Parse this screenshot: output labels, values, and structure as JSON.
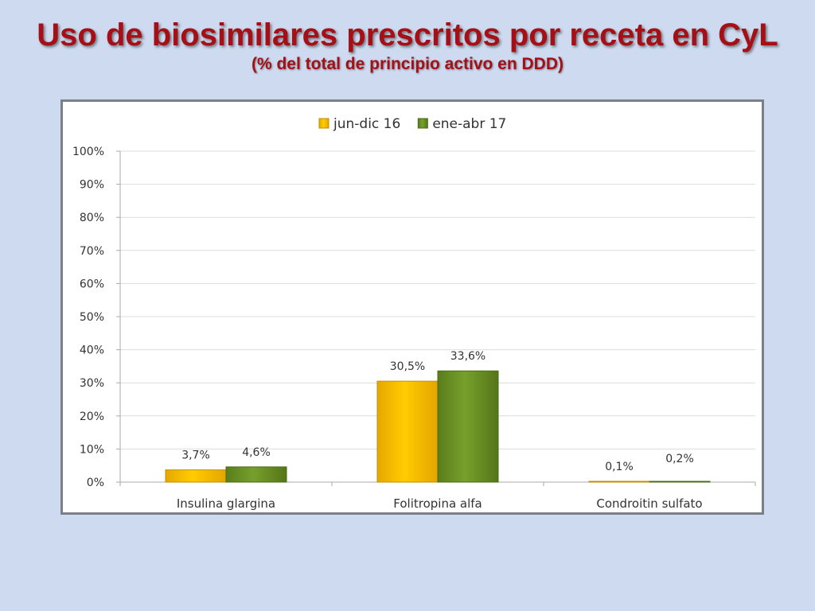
{
  "title": "Uso de biosimilares prescritos por receta en CyL",
  "subtitle": "(% del total de principio activo en DDD)",
  "colors": {
    "title": "#a50f15",
    "background": "#cddaef",
    "series_1": "#ffc000",
    "series_2": "#6b8e23"
  },
  "chart_data": {
    "type": "bar",
    "categories": [
      "Insulina glargina",
      "Folitropina alfa",
      "Condroitin sulfato"
    ],
    "series": [
      {
        "name": "jun-dic 16",
        "values": [
          3.7,
          30.5,
          0.1
        ],
        "labels": [
          "3,7%",
          "30,5%",
          "0,1%"
        ]
      },
      {
        "name": "ene-abr 17",
        "values": [
          4.6,
          33.6,
          0.2
        ],
        "labels": [
          "4,6%",
          "33,6%",
          "0,2%"
        ]
      }
    ],
    "ylim": [
      0,
      100
    ],
    "y_ticks": [
      0,
      10,
      20,
      30,
      40,
      50,
      60,
      70,
      80,
      90,
      100
    ],
    "y_tick_labels": [
      "0%",
      "10%",
      "20%",
      "30%",
      "40%",
      "50%",
      "60%",
      "70%",
      "80%",
      "90%",
      "100%"
    ],
    "grid": true,
    "legend_position": "top"
  }
}
